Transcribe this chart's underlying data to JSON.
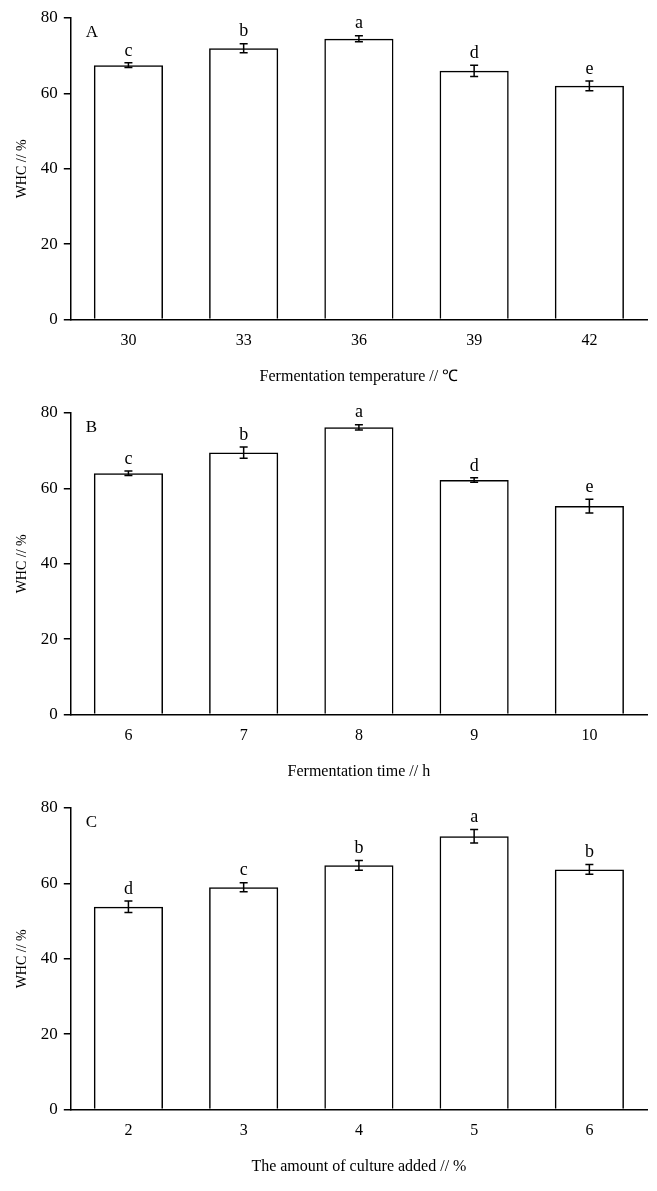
{
  "chart_data": [
    {
      "type": "bar",
      "title": "A",
      "xlabel": "Fermentation temperature // ℃",
      "ylabel": "WHC // %",
      "categories": [
        "30",
        "33",
        "36",
        "39",
        "42"
      ],
      "values": [
        67.5,
        72,
        74.5,
        66,
        62
      ],
      "errors": [
        0.6,
        1.2,
        0.8,
        1.5,
        1.3
      ],
      "color": "#000000",
      "ylim": [
        0,
        80
      ],
      "yticks": [
        0,
        20,
        40,
        60,
        80
      ],
      "grid": false,
      "legend": false,
      "annotations": [
        {
          "text": "c",
          "x": "30",
          "y": 68.1
        },
        {
          "text": "b",
          "x": "33",
          "y": 73.2
        },
        {
          "text": "a",
          "x": "36",
          "y": 75.3
        },
        {
          "text": "d",
          "x": "39",
          "y": 67.5
        },
        {
          "text": "e",
          "x": "42",
          "y": 63.3
        }
      ]
    },
    {
      "type": "bar",
      "title": "B",
      "xlabel": "Fermentation time // h",
      "ylabel": "WHC // %",
      "categories": [
        "6",
        "7",
        "8",
        "9",
        "10"
      ],
      "values": [
        64,
        69.5,
        76.2,
        62.2,
        55.3
      ],
      "errors": [
        0.6,
        1.5,
        0.7,
        0.6,
        1.8
      ],
      "color": "#000000",
      "ylim": [
        0,
        80
      ],
      "yticks": [
        0,
        20,
        40,
        60,
        80
      ],
      "grid": false,
      "legend": false,
      "annotations": [
        {
          "text": "c",
          "x": "6",
          "y": 64.6
        },
        {
          "text": "b",
          "x": "7",
          "y": 71
        },
        {
          "text": "a",
          "x": "8",
          "y": 76.9
        },
        {
          "text": "d",
          "x": "9",
          "y": 62.8
        },
        {
          "text": "e",
          "x": "10",
          "y": 57.1
        }
      ]
    },
    {
      "type": "bar",
      "title": "C",
      "xlabel": "The amount of culture added // %",
      "ylabel": "WHC // %",
      "categories": [
        "2",
        "3",
        "4",
        "5",
        "6"
      ],
      "values": [
        53.8,
        59,
        64.8,
        72.5,
        63.7
      ],
      "errors": [
        1.5,
        1.2,
        1.3,
        1.8,
        1.3
      ],
      "color": "#000000",
      "ylim": [
        0,
        80
      ],
      "yticks": [
        0,
        20,
        40,
        60,
        80
      ],
      "grid": false,
      "legend": false,
      "annotations": [
        {
          "text": "d",
          "x": "2",
          "y": 55.3
        },
        {
          "text": "c",
          "x": "3",
          "y": 60.2
        },
        {
          "text": "b",
          "x": "4",
          "y": 66.1
        },
        {
          "text": "a",
          "x": "5",
          "y": 74.3
        },
        {
          "text": "b",
          "x": "6",
          "y": 65
        }
      ]
    }
  ]
}
